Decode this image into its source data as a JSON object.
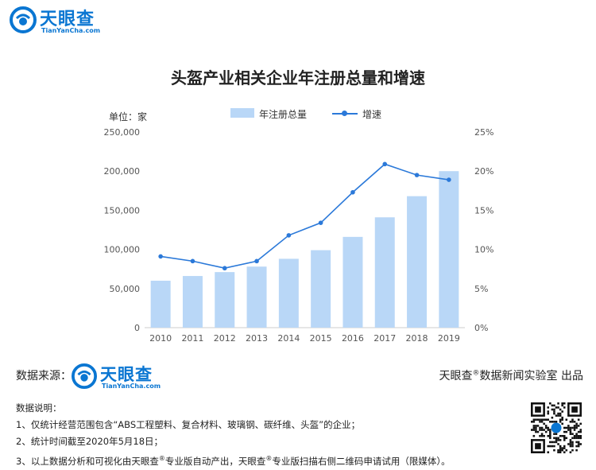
{
  "brand": {
    "name": "天眼查",
    "url": "TianYanCha.com",
    "color": "#0a76d2"
  },
  "chart_data": {
    "type": "bar",
    "title": "头盔产业相关企业年注册总量和增速",
    "unit_label": "单位：家",
    "categories": [
      "2010",
      "2011",
      "2012",
      "2013",
      "2014",
      "2015",
      "2016",
      "2017",
      "2018",
      "2019"
    ],
    "series": [
      {
        "name": "年注册总量",
        "type": "bar",
        "axis": "left",
        "color": "#b9d7f7",
        "values": [
          60000,
          66000,
          71000,
          78000,
          88000,
          99000,
          116000,
          141000,
          168000,
          200000
        ]
      },
      {
        "name": "增速",
        "type": "line",
        "axis": "right",
        "color": "#2b79d9",
        "values": [
          9.1,
          8.5,
          7.6,
          8.5,
          11.8,
          13.4,
          17.3,
          20.9,
          19.5,
          18.9
        ]
      }
    ],
    "y_left": {
      "ylim": [
        0,
        250000
      ],
      "ticks": [
        "0",
        "50,000",
        "100,000",
        "150,000",
        "200,000",
        "250,000"
      ]
    },
    "y_right": {
      "ylim": [
        0,
        25
      ],
      "ticks": [
        "0%",
        "5%",
        "10%",
        "15%",
        "20%",
        "25%"
      ]
    },
    "grid": false,
    "legend": "top"
  },
  "footer": {
    "source_label": "数据来源：",
    "lab_prefix": "天眼查",
    "lab_reg": "®",
    "lab_suffix": "数据新闻实验室 出品",
    "notes_title": "数据说明：",
    "note1": "1、仅统计经营范围包含“ABS工程塑料、复合材料、玻璃钢、碳纤维、头盔”的企业；",
    "note2": "2、统计时间截至2020年5月18日；",
    "note3_a": "3、以上数据分析和可视化由天眼查",
    "note3_reg1": "®",
    "note3_b": "专业版自动产出，天眼查",
    "note3_reg2": "®",
    "note3_c": "专业版扫描右侧二维码申请试用（限媒体）。"
  }
}
